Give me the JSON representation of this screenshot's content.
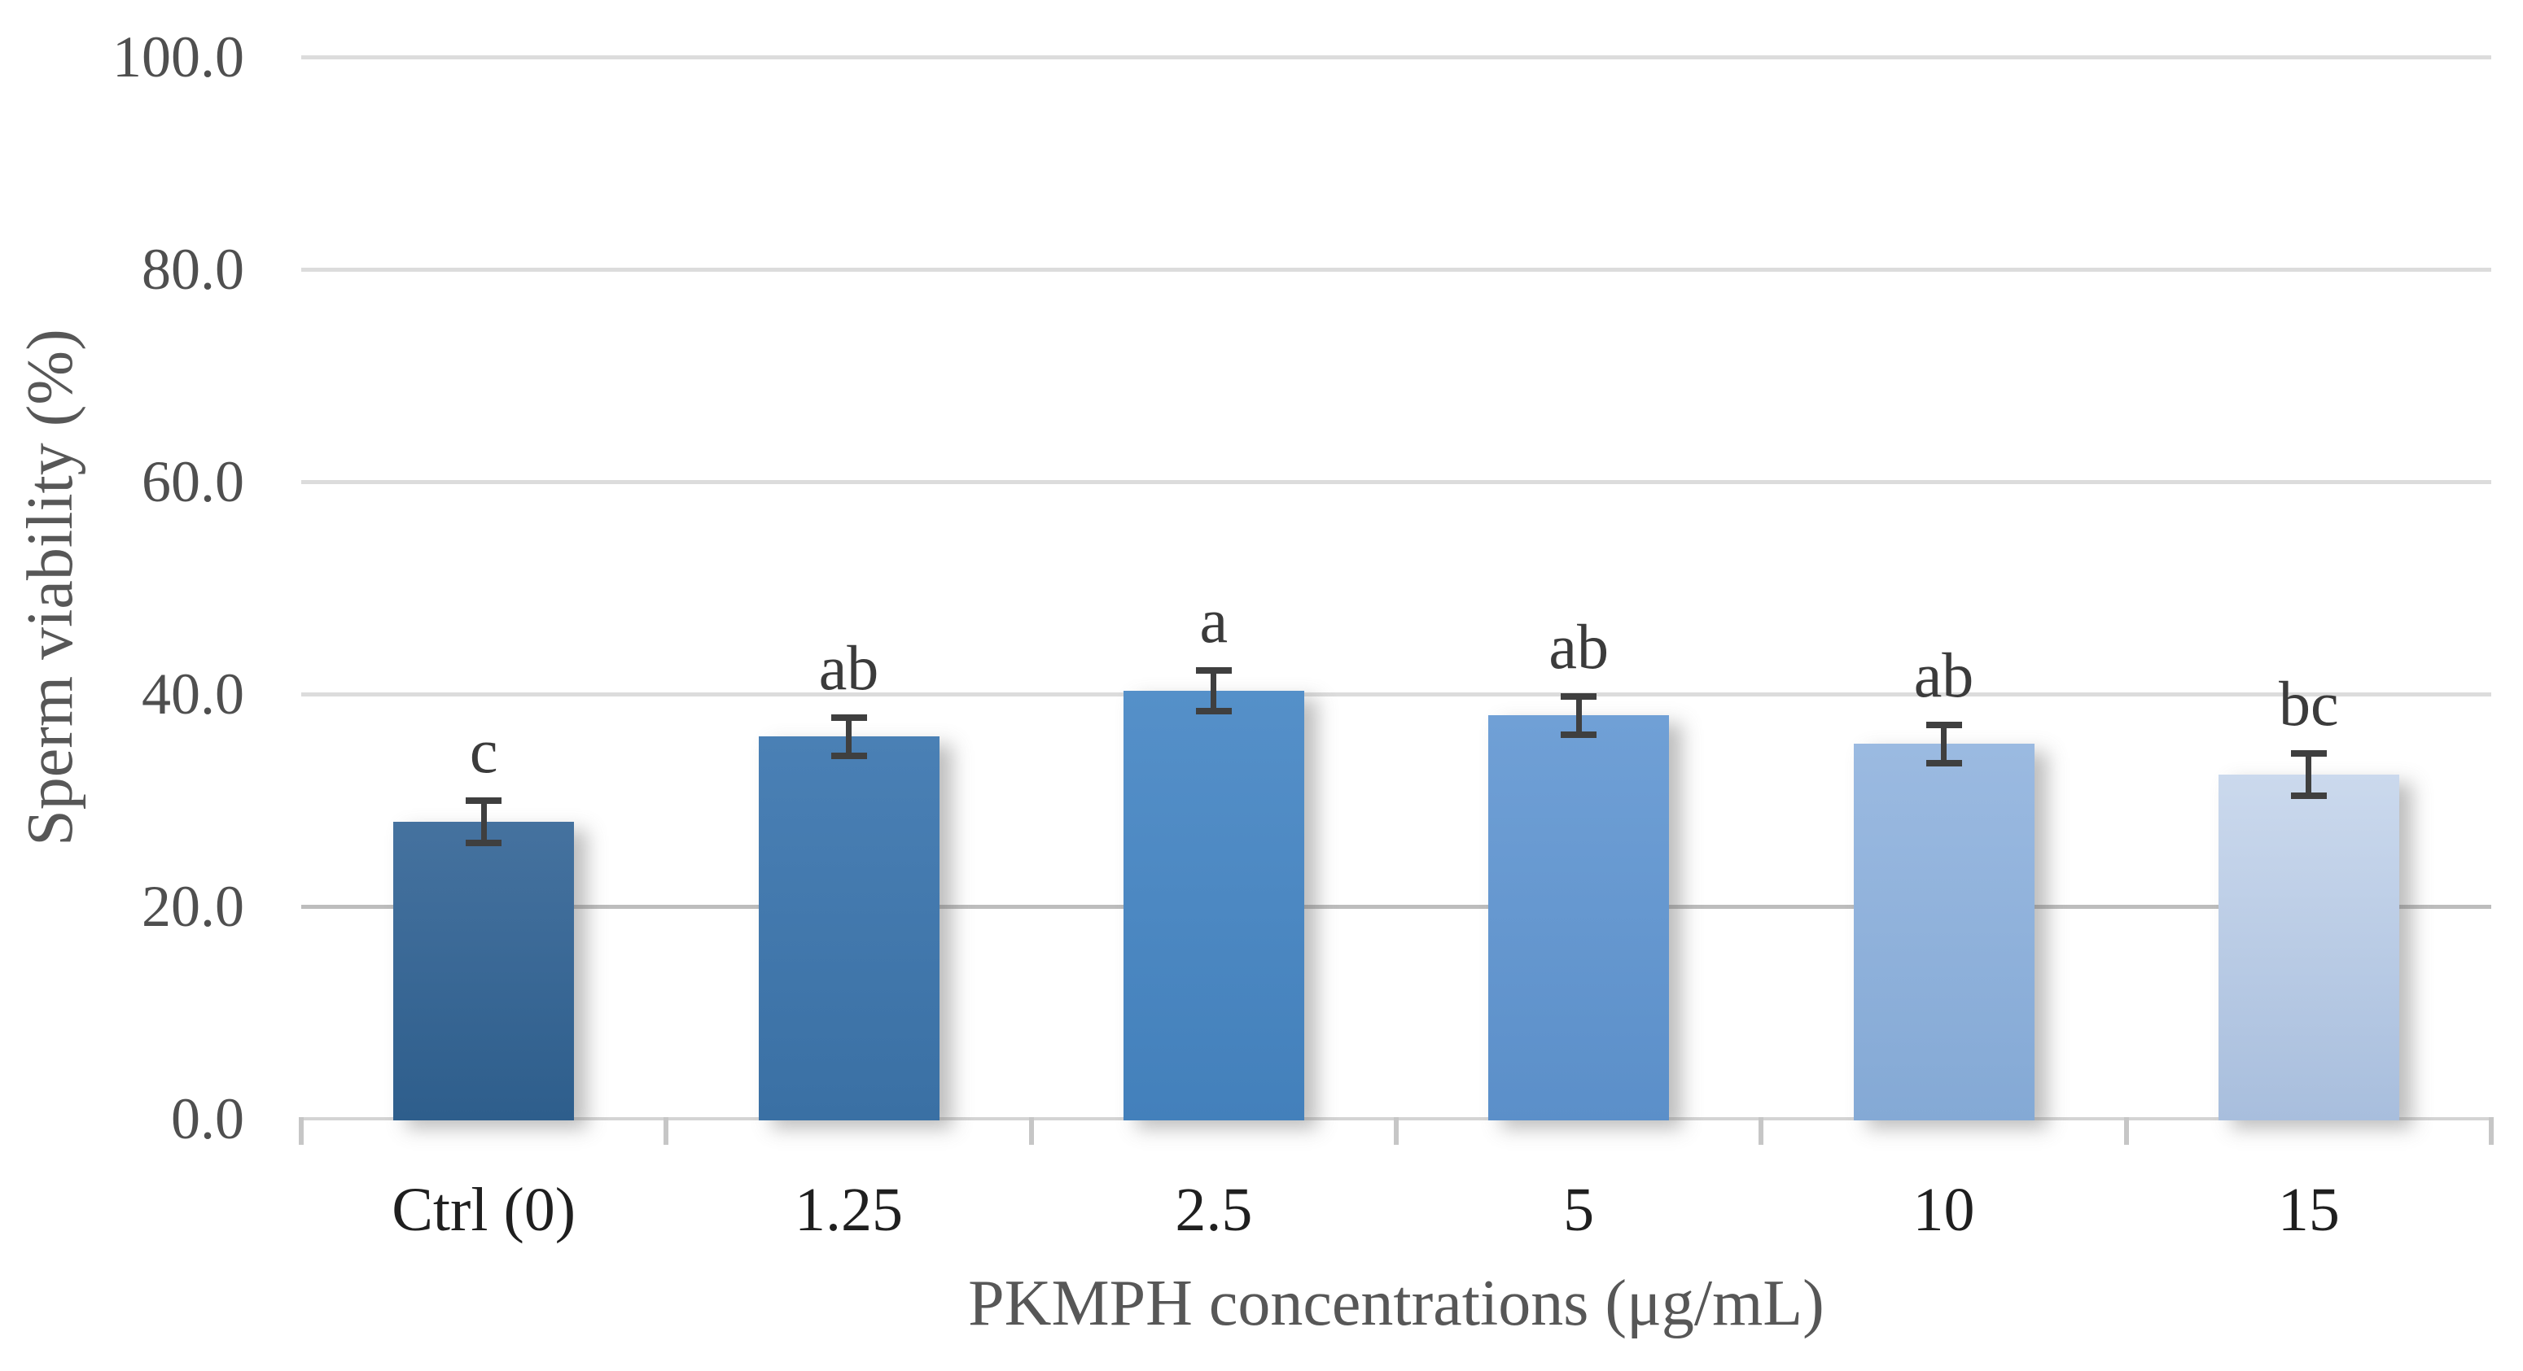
{
  "figure": {
    "background": "#ffffff"
  },
  "chart_data": {
    "type": "bar",
    "xlabel": "PKMPH concentrations (μg/mL)",
    "ylabel": "Sperm viability (%)",
    "categories": [
      "Ctrl (0)",
      "1.25",
      "2.5",
      "5",
      "10",
      "15"
    ],
    "values": [
      28.0,
      36.0,
      40.3,
      38.0,
      35.3,
      32.4
    ],
    "error_bars": [
      2.0,
      1.8,
      1.9,
      1.8,
      1.8,
      2.0
    ],
    "sig_letters": [
      "c",
      "ab",
      "a",
      "ab",
      "ab",
      "bc"
    ],
    "ylim": [
      0,
      100
    ],
    "yticks": [
      0,
      20,
      40,
      60,
      80,
      100
    ],
    "ytick_labels": [
      "0.0",
      "20.0",
      "40.0",
      "60.0",
      "80.0",
      "100.0"
    ],
    "ygrid_colors": [
      null,
      "#bdbdbd",
      "#dcdcdc",
      "#dcdcdc",
      "#dcdcdc",
      "#dcdcdc"
    ],
    "grid": true,
    "legend": false,
    "bar_gradients": [
      {
        "top": "#45729f",
        "bottom": "#2e5e8c"
      },
      {
        "top": "#4a80b5",
        "bottom": "#3a70a4"
      },
      {
        "top": "#5590c9",
        "bottom": "#4380bb"
      },
      {
        "top": "#70a0d6",
        "bottom": "#5b8fc9"
      },
      {
        "top": "#9bbae1",
        "bottom": "#84a9d5"
      },
      {
        "top": "#cbd9ed",
        "bottom": "#a8bedd"
      }
    ],
    "colors": {
      "axis_line": "#d4d4d4",
      "tick_mark": "#c6c6c6",
      "error_bar": "#3f3f3f",
      "sig_letter": "#3b3b3b",
      "ytick_text": "#4f4f4f",
      "category_text": "#1f1f1f",
      "axis_title_text": "#575757"
    }
  }
}
